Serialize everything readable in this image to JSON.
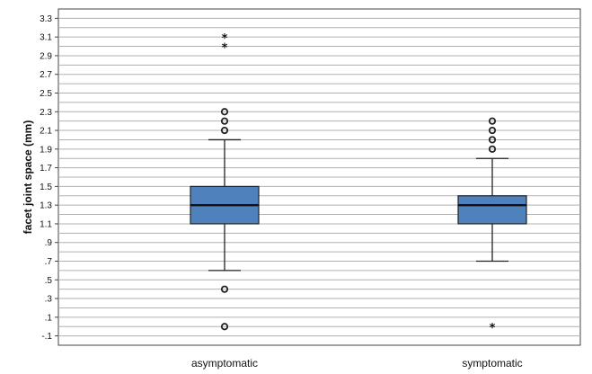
{
  "chart_data": {
    "type": "boxplot",
    "xlabel": "",
    "ylabel": "facet joint space (mm)",
    "ylim": [
      -0.2,
      3.4
    ],
    "grid": "horizontal",
    "box_color": "#4f81bd",
    "y_ticks": [
      {
        "value": -0.1,
        "label": "-.1"
      },
      {
        "value": 0.1,
        "label": ".1"
      },
      {
        "value": 0.3,
        "label": ".3"
      },
      {
        "value": 0.5,
        "label": ".5"
      },
      {
        "value": 0.7,
        "label": ".7"
      },
      {
        "value": 0.9,
        "label": ".9"
      },
      {
        "value": 1.1,
        "label": "1.1"
      },
      {
        "value": 1.3,
        "label": "1.3"
      },
      {
        "value": 1.5,
        "label": "1.5"
      },
      {
        "value": 1.7,
        "label": "1.7"
      },
      {
        "value": 1.9,
        "label": "1.9"
      },
      {
        "value": 2.1,
        "label": "2.1"
      },
      {
        "value": 2.3,
        "label": "2.3"
      },
      {
        "value": 2.5,
        "label": "2.5"
      },
      {
        "value": 2.7,
        "label": "2.7"
      },
      {
        "value": 2.9,
        "label": "2.9"
      },
      {
        "value": 3.1,
        "label": "3.1"
      },
      {
        "value": 3.3,
        "label": "3.3"
      }
    ],
    "categories": [
      "asymptomatic",
      "symptomatic"
    ],
    "boxes": [
      {
        "category": "asymptomatic",
        "whisker_low": 0.6,
        "q1": 1.1,
        "median": 1.3,
        "q3": 1.5,
        "whisker_high": 2.0,
        "outliers": [
          0.4,
          0.0,
          2.1,
          2.2,
          2.3
        ],
        "extremes": [
          3.0,
          3.1
        ]
      },
      {
        "category": "symptomatic",
        "whisker_low": 0.7,
        "q1": 1.1,
        "median": 1.3,
        "q3": 1.4,
        "whisker_high": 1.8,
        "outliers": [
          1.9,
          2.0,
          2.1,
          2.2
        ],
        "extremes": [
          0.0
        ]
      }
    ]
  }
}
